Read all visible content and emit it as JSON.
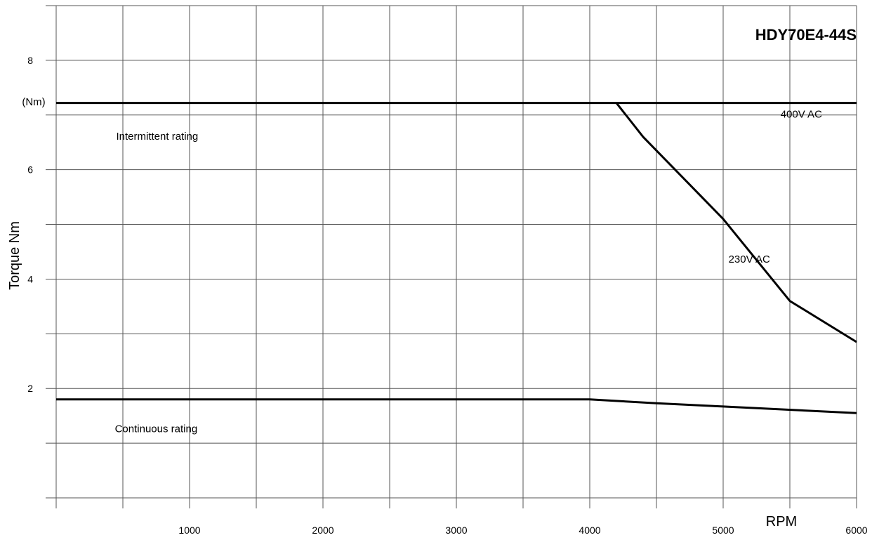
{
  "chart_data": {
    "type": "line",
    "title": "HDY70E4-44S",
    "xlabel": "RPM",
    "ylabel": "Torque Nm",
    "unit_label": "(Nm)",
    "xlim": [
      0,
      6000
    ],
    "ylim": [
      0,
      9
    ],
    "grid": true,
    "x_ticks": [
      {
        "value": 1000,
        "label": "1000"
      },
      {
        "value": 2000,
        "label": "2000"
      },
      {
        "value": 3000,
        "label": "3000"
      },
      {
        "value": 4000,
        "label": "4000"
      },
      {
        "value": 5000,
        "label": "5000"
      },
      {
        "value": 6000,
        "label": "6000"
      }
    ],
    "y_ticks": [
      {
        "value": 2,
        "label": "2"
      },
      {
        "value": 4,
        "label": "4"
      },
      {
        "value": 6,
        "label": "6"
      },
      {
        "value": 8,
        "label": "8"
      }
    ],
    "x_grid": [
      0,
      500,
      1000,
      1500,
      2000,
      2500,
      3000,
      3500,
      4000,
      4500,
      5000,
      5500,
      6000
    ],
    "y_grid": [
      0,
      1,
      2,
      3,
      4,
      5,
      6,
      7,
      8,
      9
    ],
    "series": [
      {
        "key": "intermittent-400v",
        "x": [
          0,
          6000
        ],
        "y": [
          7.22,
          7.22
        ]
      },
      {
        "key": "intermittent-230v",
        "x": [
          4200,
          4400,
          5000,
          5500,
          6000
        ],
        "y": [
          7.22,
          6.6,
          5.1,
          3.6,
          2.85
        ]
      },
      {
        "key": "continuous",
        "x": [
          0,
          4000,
          4500,
          5000,
          6000
        ],
        "y": [
          1.8,
          1.8,
          1.73,
          1.67,
          1.55
        ]
      }
    ],
    "annotations": [
      {
        "key": "intermittent-label",
        "text": "Intermittent rating",
        "x": 450,
        "y": 6.55
      },
      {
        "key": "400v-label",
        "text": "400V AC",
        "x": 5430,
        "y": 6.95
      },
      {
        "key": "230v-label",
        "text": "230V AC",
        "x": 5040,
        "y": 4.3
      },
      {
        "key": "continuous-label",
        "text": "Continuous rating",
        "x": 440,
        "y": 1.2
      }
    ]
  }
}
